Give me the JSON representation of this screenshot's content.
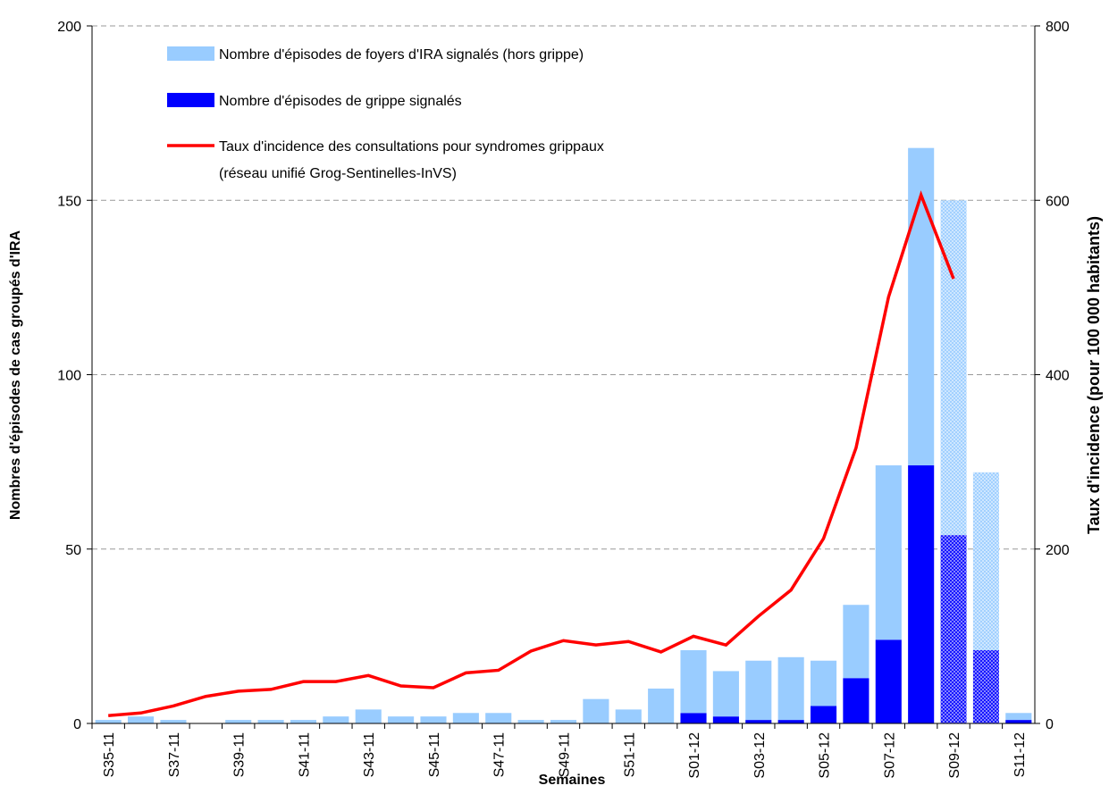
{
  "chart_data": {
    "type": "bar_line",
    "x_label": "Semaines",
    "y_label": "Nombres d'épisodes de cas groupés d'IRA",
    "y2_label": "Taux d'incidence (pour 100 000 habitants)",
    "categories": [
      "S35-11",
      null,
      "S37-11",
      null,
      "S39-11",
      null,
      "S41-11",
      null,
      "S43-11",
      null,
      "S45-11",
      null,
      "S47-11",
      null,
      "S49-11",
      null,
      "S51-11",
      null,
      "S01-12",
      null,
      "S03-12",
      null,
      "S05-12",
      null,
      "S07-12",
      null,
      "S09-12",
      null,
      "S11-12"
    ],
    "series": [
      {
        "name": "Nombre d'épisodes de foyers d'IRA signalés (hors grippe)",
        "color": "#99ccff",
        "kind": "bar",
        "values": [
          1,
          2,
          1,
          0,
          1,
          1,
          1,
          2,
          4,
          2,
          2,
          3,
          3,
          1,
          1,
          7,
          4,
          10,
          18,
          13,
          17,
          18,
          13,
          21,
          50,
          91,
          96,
          51,
          2
        ]
      },
      {
        "name": "Nombre d'épisodes de grippe signalés",
        "color": "#0000ff",
        "kind": "bar",
        "values": [
          0,
          0,
          0,
          0,
          0,
          0,
          0,
          0,
          0,
          0,
          0,
          0,
          0,
          0,
          0,
          0,
          0,
          0,
          3,
          2,
          1,
          1,
          5,
          13,
          24,
          74,
          54,
          21,
          1
        ]
      },
      {
        "name": "Taux d'incidence des consultations pour syndromes grippaux\n(réseau unifié Grog-Sentinelles-InVS)",
        "color": "#ff0000",
        "kind": "line",
        "axis": "y2",
        "values": [
          9,
          12,
          20,
          31,
          37,
          39,
          48,
          48,
          55,
          43,
          41,
          58,
          61,
          83,
          95,
          90,
          94,
          82,
          100,
          90,
          123,
          153,
          212,
          316,
          489,
          606,
          510,
          null,
          null
        ]
      }
    ],
    "hatched_indices": [
      26,
      27
    ],
    "ylim": [
      0,
      200
    ],
    "yticks": [
      0,
      50,
      100,
      150,
      200
    ],
    "y2lim": [
      0,
      800
    ],
    "y2ticks": [
      0,
      200,
      400,
      600,
      800
    ],
    "grid": true
  }
}
